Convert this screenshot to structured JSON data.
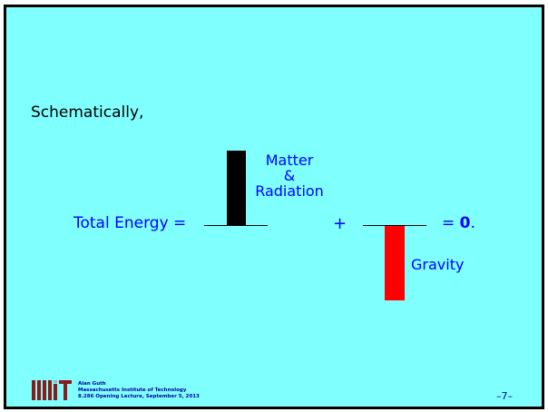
{
  "slide": {
    "lead_text": "Schematically,",
    "equation": {
      "left_label": "Total Energy =",
      "plus": "+",
      "equals": "= ",
      "zero": "0",
      "period": "."
    },
    "diagram": {
      "positive_bar": {
        "label_line1": "Matter",
        "label_line2": "&",
        "label_line3": "Radiation",
        "color": "#000000"
      },
      "negative_bar": {
        "label": "Gravity",
        "color": "#ff0000"
      }
    }
  },
  "footer": {
    "author": "Alan Guth",
    "institution": "Massachusetts Institute of Technology",
    "lecture": "8.286 Opening Lecture, September 5, 2013",
    "page_number": "–7–",
    "logo_color": "#8b1a1a"
  },
  "colors": {
    "background": "#80ffff",
    "text_blue": "#0000ff",
    "border": "#000000"
  }
}
